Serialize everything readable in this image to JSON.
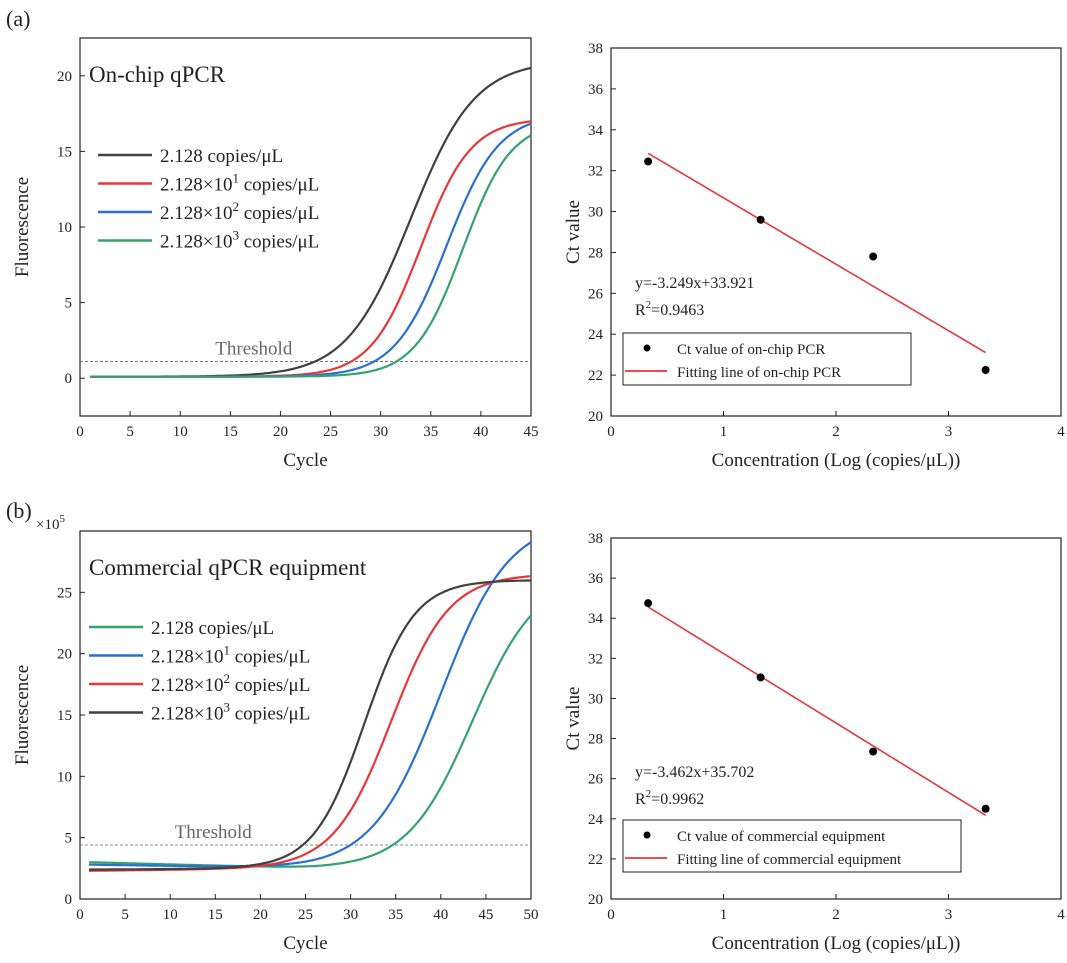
{
  "panel_labels": [
    "(a)",
    "(b)"
  ],
  "chart_data": [
    {
      "id": "a-left",
      "type": "line",
      "title": "On-chip qPCR",
      "xlabel": "Cycle",
      "ylabel": "Fluorescence",
      "xlim": [
        0,
        45
      ],
      "ylim": [
        -2.5,
        22.5
      ],
      "xticks": [
        0,
        5,
        10,
        15,
        20,
        25,
        30,
        35,
        40,
        45
      ],
      "yticks": [
        0,
        5,
        10,
        15,
        20
      ],
      "threshold": {
        "label": "Threshold",
        "value": 1.1
      },
      "legend_position": "upper-left",
      "series": [
        {
          "name": "2.128 copies/μL",
          "base": "2.128",
          "exp": "",
          "unit": "copies/μL",
          "color": "#404040",
          "baseline": 0.1,
          "plateau": 21.0,
          "midpoint": 33.0,
          "slope": 3.2
        },
        {
          "name": "2.128×10¹ copies/μL",
          "base": "2.128×10",
          "exp": "1",
          "unit": "copies/μL",
          "color": "#e8363a",
          "baseline": 0.1,
          "plateau": 17.2,
          "midpoint": 34.0,
          "slope": 2.5
        },
        {
          "name": "2.128×10² copies/μL",
          "base": "2.128×10",
          "exp": "2",
          "unit": "copies/μL",
          "color": "#2a6fd4",
          "baseline": 0.1,
          "plateau": 17.5,
          "midpoint": 36.6,
          "slope": 2.6
        },
        {
          "name": "2.128×10³ copies/μL",
          "base": "2.128×10",
          "exp": "3",
          "unit": "copies/μL",
          "color": "#33a36b",
          "baseline": 0.1,
          "plateau": 17.0,
          "midpoint": 38.2,
          "slope": 2.4
        }
      ]
    },
    {
      "id": "a-right",
      "type": "scatter",
      "xlabel": "Concentration (Log (copies/μL))",
      "ylabel": "Ct value",
      "xlim": [
        0,
        4
      ],
      "ylim": [
        20,
        38
      ],
      "xticks": [
        0,
        1,
        2,
        3,
        4
      ],
      "yticks": [
        20,
        22,
        24,
        26,
        28,
        30,
        32,
        34,
        36,
        38
      ],
      "points": {
        "name": "Ct value of on-chip PCR",
        "x": [
          0.33,
          1.33,
          2.33,
          3.33
        ],
        "y": [
          32.45,
          29.6,
          27.8,
          22.25
        ]
      },
      "fit": {
        "name": "Fitting line of on-chip PCR",
        "slope": -3.249,
        "intercept": 33.921,
        "x_range": [
          0.33,
          3.33
        ],
        "color": "#e8363a"
      },
      "equation": "y=-3.249x+33.921",
      "r2_prefix": "R",
      "r2_sup": "2",
      "r2_value": "=0.9463",
      "legend_position": "lower-left"
    },
    {
      "id": "b-left",
      "type": "line",
      "title": "Commercial qPCR equipment",
      "xlabel": "Cycle",
      "ylabel": "Fluorescence",
      "y_multiplier": "×10⁵",
      "y_multiplier_base": "×10",
      "y_multiplier_exp": "5",
      "xlim": [
        0,
        50
      ],
      "ylim": [
        0,
        30
      ],
      "xticks": [
        0,
        5,
        10,
        15,
        20,
        25,
        30,
        35,
        40,
        45,
        50
      ],
      "yticks": [
        0,
        5,
        10,
        15,
        20,
        25
      ],
      "threshold": {
        "label": "Threshold",
        "value": 4.4
      },
      "legend_position": "upper-left",
      "series": [
        {
          "name": "2.128 copies/μL",
          "base": "2.128",
          "exp": "",
          "unit": "copies/μL",
          "color": "#33a36b",
          "baseline_start": 3.0,
          "baseline_end": 2.5,
          "plateau": 26.5,
          "midpoint": 43.5,
          "slope": 3.6
        },
        {
          "name": "2.128×10¹ copies/μL",
          "base": "2.128×10",
          "exp": "1",
          "unit": "copies/μL",
          "color": "#2a6fd4",
          "baseline_start": 2.8,
          "baseline_end": 2.5,
          "plateau": 31.0,
          "midpoint": 40.0,
          "slope": 3.8
        },
        {
          "name": "2.128×10² copies/μL",
          "base": "2.128×10",
          "exp": "2",
          "unit": "copies/μL",
          "color": "#e8363a",
          "baseline_start": 2.3,
          "baseline_end": 2.5,
          "plateau": 26.5,
          "midpoint": 34.5,
          "slope": 3.2
        },
        {
          "name": "2.128×10³ copies/μL",
          "base": "2.128×10",
          "exp": "3",
          "unit": "copies/μL",
          "color": "#404040",
          "baseline_start": 2.4,
          "baseline_end": 2.5,
          "plateau": 26.0,
          "midpoint": 31.5,
          "slope": 2.8
        }
      ]
    },
    {
      "id": "b-right",
      "type": "scatter",
      "xlabel": "Concentration (Log (copies/μL))",
      "ylabel": "Ct value",
      "xlim": [
        0,
        4
      ],
      "ylim": [
        20,
        38
      ],
      "xticks": [
        0,
        1,
        2,
        3,
        4
      ],
      "yticks": [
        20,
        22,
        24,
        26,
        28,
        30,
        32,
        34,
        36,
        38
      ],
      "points": {
        "name": "Ct value of commercial equipment",
        "x": [
          0.33,
          1.33,
          2.33,
          3.33
        ],
        "y": [
          34.75,
          31.05,
          27.35,
          24.5
        ]
      },
      "fit": {
        "name": "Fitting line of commercial equipment",
        "slope": -3.462,
        "intercept": 35.702,
        "x_range": [
          0.33,
          3.33
        ],
        "color": "#e8363a"
      },
      "equation": "y=-3.462x+35.702",
      "r2_prefix": "R",
      "r2_sup": "2",
      "r2_value": "=0.9962",
      "legend_position": "lower-left"
    }
  ]
}
